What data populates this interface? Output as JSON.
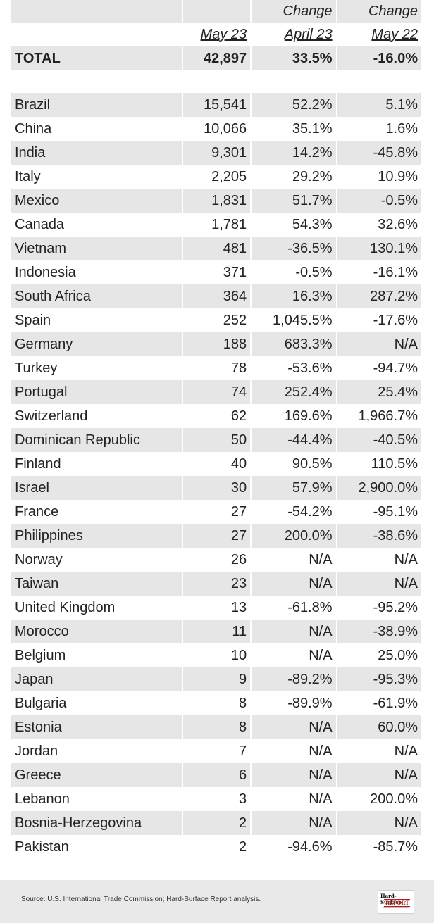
{
  "header": {
    "change_label_1": "Change",
    "change_label_2": "Change",
    "col_current": "May 23",
    "col_prev_month": "April 23",
    "col_prev_year": "May 22"
  },
  "total": {
    "label": "TOTAL",
    "value": "42,897",
    "change_month": "33.5%",
    "change_year": "-16.0%"
  },
  "rows": [
    {
      "country": "Brazil",
      "value": "15,541",
      "change_month": "52.2%",
      "change_year": "5.1%"
    },
    {
      "country": "China",
      "value": "10,066",
      "change_month": "35.1%",
      "change_year": "1.6%"
    },
    {
      "country": "India",
      "value": "9,301",
      "change_month": "14.2%",
      "change_year": "-45.8%"
    },
    {
      "country": "Italy",
      "value": "2,205",
      "change_month": "29.2%",
      "change_year": "10.9%"
    },
    {
      "country": "Mexico",
      "value": "1,831",
      "change_month": "51.7%",
      "change_year": "-0.5%"
    },
    {
      "country": "Canada",
      "value": "1,781",
      "change_month": "54.3%",
      "change_year": "32.6%"
    },
    {
      "country": "Vietnam",
      "value": "481",
      "change_month": "-36.5%",
      "change_year": "130.1%"
    },
    {
      "country": "Indonesia",
      "value": "371",
      "change_month": "-0.5%",
      "change_year": "-16.1%"
    },
    {
      "country": "South Africa",
      "value": "364",
      "change_month": "16.3%",
      "change_year": "287.2%"
    },
    {
      "country": "Spain",
      "value": "252",
      "change_month": "1,045.5%",
      "change_year": "-17.6%"
    },
    {
      "country": "Germany",
      "value": "188",
      "change_month": "683.3%",
      "change_year": "N/A"
    },
    {
      "country": "Turkey",
      "value": "78",
      "change_month": "-53.6%",
      "change_year": "-94.7%"
    },
    {
      "country": "Portugal",
      "value": "74",
      "change_month": "252.4%",
      "change_year": "25.4%"
    },
    {
      "country": "Switzerland",
      "value": "62",
      "change_month": "169.6%",
      "change_year": "1,966.7%"
    },
    {
      "country": "Dominican Republic",
      "value": "50",
      "change_month": "-44.4%",
      "change_year": "-40.5%"
    },
    {
      "country": "Finland",
      "value": "40",
      "change_month": "90.5%",
      "change_year": "110.5%"
    },
    {
      "country": "Israel",
      "value": "30",
      "change_month": "57.9%",
      "change_year": "2,900.0%"
    },
    {
      "country": "France",
      "value": "27",
      "change_month": "-54.2%",
      "change_year": "-95.1%"
    },
    {
      "country": "Philippines",
      "value": "27",
      "change_month": "200.0%",
      "change_year": "-38.6%"
    },
    {
      "country": "Norway",
      "value": "26",
      "change_month": "N/A",
      "change_year": "N/A"
    },
    {
      "country": "Taiwan",
      "value": "23",
      "change_month": "N/A",
      "change_year": "N/A"
    },
    {
      "country": "United Kingdom",
      "value": "13",
      "change_month": "-61.8%",
      "change_year": "-95.2%"
    },
    {
      "country": "Morocco",
      "value": "11",
      "change_month": "N/A",
      "change_year": "-38.9%"
    },
    {
      "country": "Belgium",
      "value": "10",
      "change_month": "N/A",
      "change_year": "25.0%"
    },
    {
      "country": "Japan",
      "value": "9",
      "change_month": "-89.2%",
      "change_year": "-95.3%"
    },
    {
      "country": "Bulgaria",
      "value": "8",
      "change_month": "-89.9%",
      "change_year": "-61.9%"
    },
    {
      "country": "Estonia",
      "value": "8",
      "change_month": "N/A",
      "change_year": "60.0%"
    },
    {
      "country": "Jordan",
      "value": "7",
      "change_month": "N/A",
      "change_year": "N/A"
    },
    {
      "country": "Greece",
      "value": "6",
      "change_month": "N/A",
      "change_year": "N/A"
    },
    {
      "country": "Lebanon",
      "value": "3",
      "change_month": "N/A",
      "change_year": "200.0%"
    },
    {
      "country": "Bosnia-Herzegovina",
      "value": "2",
      "change_month": "N/A",
      "change_year": "N/A"
    },
    {
      "country": "Pakistan",
      "value": "2",
      "change_month": "-94.6%",
      "change_year": "-85.7%"
    }
  ],
  "footer": {
    "source": "Source: U.S. International Trade Commission; Hard-Surface Report analysis.",
    "logo": {
      "line1": "Hard-Surface",
      "line2": "REPORT",
      "accent_color": "#b21d1d"
    }
  },
  "colors": {
    "shade": "#e6e6e6",
    "footer_bg": "#e9e9e9"
  }
}
